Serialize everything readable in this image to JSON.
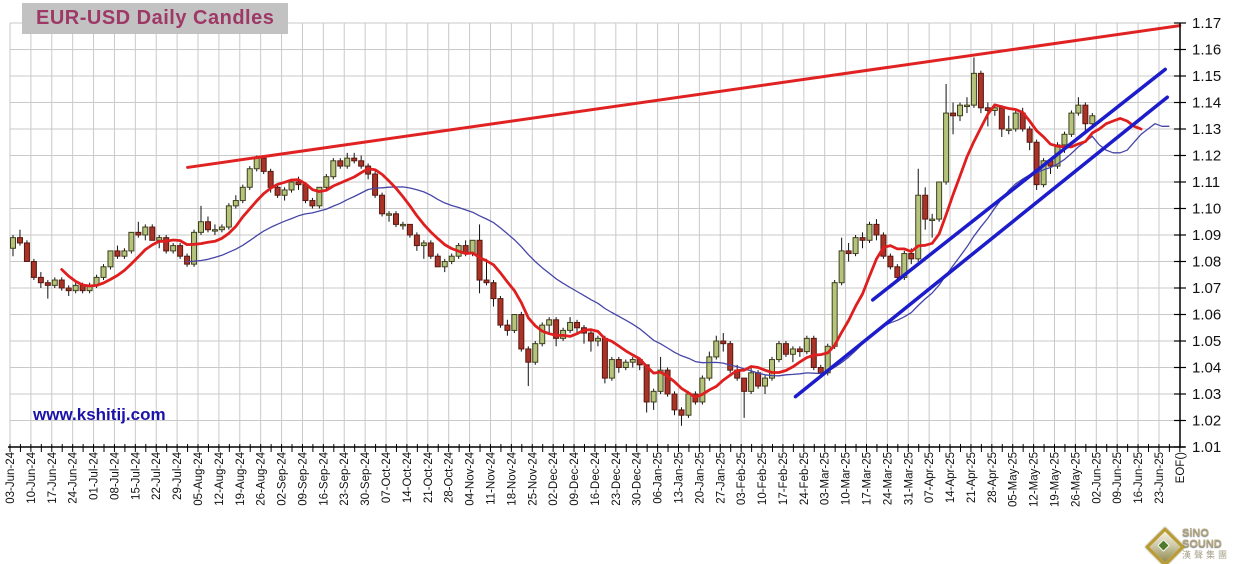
{
  "title": "EUR-USD Daily Candles",
  "watermark": "www.kshitij.com",
  "brand": {
    "name": "SiNO SOUND",
    "chinese": "漢聲集團"
  },
  "colors": {
    "grid": "#c9c9c9",
    "axis": "#000000",
    "label": "#111111",
    "bull_fill": "#b5c47c",
    "bull_stroke": "#3f3f1c",
    "bear_fill": "#a93327",
    "bear_stroke": "#571810",
    "wick": "#111111",
    "red_line": "#df1f1f",
    "red_trend": "#e02222",
    "blue_trend": "#1c1ccb",
    "blue_ma": "#4646a8",
    "title_color": "#9e3866",
    "title_bg": "#c2c2c2",
    "watermark_color": "#1b12aa"
  },
  "chart_data": {
    "type": "candlestick",
    "title": "EUR-USD Daily Candles",
    "ylabel": "",
    "ylim": [
      1.01,
      1.17
    ],
    "ytick_step": 0.01,
    "ytick_labels": [
      "1.17",
      "1.16",
      "1.15",
      "1.14",
      "1.13",
      "1.12",
      "1.11",
      "1.10",
      "1.09",
      "1.08",
      "1.07",
      "1.06",
      "1.05",
      "1.04",
      "1.03",
      "1.02",
      "1.01"
    ],
    "x_labels": [
      "03-Jun-24",
      "10-Jun-24",
      "17-Jun-24",
      "24-Jun-24",
      "01-Jul-24",
      "08-Jul-24",
      "15-Jul-24",
      "22-Jul-24",
      "29-Jul-24",
      "05-Aug-24",
      "12-Aug-24",
      "19-Aug-24",
      "26-Aug-24",
      "02-Sep-24",
      "09-Sep-24",
      "16-Sep-24",
      "23-Sep-24",
      "30-Sep-24",
      "07-Oct-24",
      "14-Oct-24",
      "21-Oct-24",
      "28-Oct-24",
      "04-Nov-24",
      "11-Nov-24",
      "18-Nov-24",
      "25-Nov-24",
      "02-Dec-24",
      "09-Dec-24",
      "16-Dec-24",
      "23-Dec-24",
      "30-Dec-24",
      "06-Jan-25",
      "13-Jan-25",
      "20-Jan-25",
      "27-Jan-25",
      "03-Feb-25",
      "10-Feb-25",
      "17-Feb-25",
      "24-Feb-25",
      "03-Mar-25",
      "10-Mar-25",
      "17-Mar-25",
      "24-Mar-25",
      "31-Mar-25",
      "07-Apr-25",
      "14-Apr-25",
      "21-Apr-25",
      "28-Apr-25",
      "05-May-25",
      "12-May-25",
      "19-May-25",
      "26-May-25",
      "02-Jun-25",
      "09-Jun-25",
      "16-Jun-25",
      "23-Jun-25"
    ],
    "x_end_label": "EOF()",
    "grid": true,
    "candles_note": "OHLC sampled 3 per week starting week of 03-Jun-24",
    "candles": [
      [
        1.085,
        1.09,
        1.082,
        1.089
      ],
      [
        1.089,
        1.092,
        1.086,
        1.087
      ],
      [
        1.087,
        1.088,
        1.08,
        1.08
      ],
      [
        1.08,
        1.081,
        1.073,
        1.074
      ],
      [
        1.074,
        1.076,
        1.07,
        1.072
      ],
      [
        1.072,
        1.073,
        1.066,
        1.071
      ],
      [
        1.071,
        1.074,
        1.07,
        1.073
      ],
      [
        1.073,
        1.074,
        1.069,
        1.07
      ],
      [
        1.07,
        1.071,
        1.067,
        1.069
      ],
      [
        1.069,
        1.072,
        1.068,
        1.071
      ],
      [
        1.071,
        1.072,
        1.068,
        1.069
      ],
      [
        1.069,
        1.072,
        1.068,
        1.071
      ],
      [
        1.071,
        1.075,
        1.07,
        1.074
      ],
      [
        1.074,
        1.079,
        1.073,
        1.078
      ],
      [
        1.078,
        1.084,
        1.077,
        1.084
      ],
      [
        1.084,
        1.086,
        1.081,
        1.082
      ],
      [
        1.082,
        1.085,
        1.081,
        1.084
      ],
      [
        1.084,
        1.091,
        1.083,
        1.091
      ],
      [
        1.091,
        1.095,
        1.089,
        1.09
      ],
      [
        1.09,
        1.094,
        1.088,
        1.093
      ],
      [
        1.093,
        1.094,
        1.088,
        1.088
      ],
      [
        1.088,
        1.09,
        1.085,
        1.089
      ],
      [
        1.089,
        1.09,
        1.083,
        1.084
      ],
      [
        1.084,
        1.087,
        1.083,
        1.086
      ],
      [
        1.086,
        1.087,
        1.081,
        1.082
      ],
      [
        1.082,
        1.083,
        1.078,
        1.079
      ],
      [
        1.079,
        1.092,
        1.078,
        1.091
      ],
      [
        1.091,
        1.101,
        1.09,
        1.095
      ],
      [
        1.095,
        1.097,
        1.091,
        1.092
      ],
      [
        1.092,
        1.094,
        1.09,
        1.092
      ],
      [
        1.092,
        1.094,
        1.091,
        1.093
      ],
      [
        1.093,
        1.102,
        1.092,
        1.101
      ],
      [
        1.101,
        1.105,
        1.1,
        1.103
      ],
      [
        1.103,
        1.109,
        1.102,
        1.108
      ],
      [
        1.108,
        1.116,
        1.107,
        1.115
      ],
      [
        1.115,
        1.12,
        1.114,
        1.119
      ],
      [
        1.119,
        1.12,
        1.113,
        1.114
      ],
      [
        1.114,
        1.115,
        1.106,
        1.108
      ],
      [
        1.108,
        1.109,
        1.104,
        1.105
      ],
      [
        1.105,
        1.108,
        1.103,
        1.107
      ],
      [
        1.107,
        1.111,
        1.106,
        1.11
      ],
      [
        1.11,
        1.112,
        1.107,
        1.109
      ],
      [
        1.109,
        1.11,
        1.102,
        1.103
      ],
      [
        1.103,
        1.104,
        1.1,
        1.101
      ],
      [
        1.101,
        1.108,
        1.1,
        1.108
      ],
      [
        1.108,
        1.113,
        1.107,
        1.112
      ],
      [
        1.112,
        1.119,
        1.111,
        1.118
      ],
      [
        1.118,
        1.119,
        1.115,
        1.116
      ],
      [
        1.116,
        1.121,
        1.115,
        1.119
      ],
      [
        1.119,
        1.121,
        1.117,
        1.118
      ],
      [
        1.118,
        1.12,
        1.115,
        1.116
      ],
      [
        1.116,
        1.117,
        1.111,
        1.113
      ],
      [
        1.113,
        1.114,
        1.104,
        1.105
      ],
      [
        1.105,
        1.106,
        1.097,
        1.098
      ],
      [
        1.098,
        1.099,
        1.095,
        1.098
      ],
      [
        1.098,
        1.099,
        1.093,
        1.094
      ],
      [
        1.094,
        1.095,
        1.092,
        1.094
      ],
      [
        1.094,
        1.094,
        1.089,
        1.09
      ],
      [
        1.09,
        1.091,
        1.084,
        1.086
      ],
      [
        1.086,
        1.088,
        1.081,
        1.087
      ],
      [
        1.087,
        1.088,
        1.081,
        1.082
      ],
      [
        1.082,
        1.083,
        1.078,
        1.078
      ],
      [
        1.078,
        1.081,
        1.076,
        1.08
      ],
      [
        1.08,
        1.083,
        1.079,
        1.082
      ],
      [
        1.082,
        1.087,
        1.081,
        1.086
      ],
      [
        1.086,
        1.088,
        1.082,
        1.083
      ],
      [
        1.083,
        1.088,
        1.082,
        1.088
      ],
      [
        1.088,
        1.094,
        1.068,
        1.073
      ],
      [
        1.073,
        1.081,
        1.071,
        1.072
      ],
      [
        1.072,
        1.073,
        1.063,
        1.066
      ],
      [
        1.066,
        1.067,
        1.055,
        1.056
      ],
      [
        1.056,
        1.058,
        1.052,
        1.054
      ],
      [
        1.054,
        1.06,
        1.053,
        1.06
      ],
      [
        1.06,
        1.061,
        1.046,
        1.047
      ],
      [
        1.047,
        1.048,
        1.033,
        1.042
      ],
      [
        1.042,
        1.05,
        1.041,
        1.049
      ],
      [
        1.049,
        1.057,
        1.048,
        1.056
      ],
      [
        1.056,
        1.059,
        1.053,
        1.058
      ],
      [
        1.058,
        1.059,
        1.048,
        1.051
      ],
      [
        1.051,
        1.055,
        1.05,
        1.054
      ],
      [
        1.054,
        1.059,
        1.053,
        1.057
      ],
      [
        1.057,
        1.058,
        1.053,
        1.055
      ],
      [
        1.055,
        1.056,
        1.049,
        1.053
      ],
      [
        1.053,
        1.054,
        1.046,
        1.05
      ],
      [
        1.05,
        1.052,
        1.048,
        1.051
      ],
      [
        1.051,
        1.052,
        1.034,
        1.036
      ],
      [
        1.036,
        1.044,
        1.035,
        1.043
      ],
      [
        1.043,
        1.044,
        1.038,
        1.04
      ],
      [
        1.04,
        1.043,
        1.039,
        1.042
      ],
      [
        1.042,
        1.044,
        1.04,
        1.043
      ],
      [
        1.043,
        1.043,
        1.039,
        1.041
      ],
      [
        1.041,
        1.041,
        1.023,
        1.027
      ],
      [
        1.027,
        1.032,
        1.024,
        1.031
      ],
      [
        1.031,
        1.044,
        1.03,
        1.039
      ],
      [
        1.039,
        1.04,
        1.029,
        1.03
      ],
      [
        1.03,
        1.031,
        1.022,
        1.024
      ],
      [
        1.024,
        1.025,
        1.018,
        1.022
      ],
      [
        1.022,
        1.031,
        1.021,
        1.03
      ],
      [
        1.03,
        1.031,
        1.026,
        1.027
      ],
      [
        1.027,
        1.037,
        1.026,
        1.036
      ],
      [
        1.036,
        1.046,
        1.035,
        1.044
      ],
      [
        1.044,
        1.052,
        1.043,
        1.05
      ],
      [
        1.05,
        1.053,
        1.046,
        1.049
      ],
      [
        1.049,
        1.05,
        1.038,
        1.039
      ],
      [
        1.039,
        1.041,
        1.035,
        1.036
      ],
      [
        1.036,
        1.036,
        1.021,
        1.031
      ],
      [
        1.031,
        1.04,
        1.03,
        1.038
      ],
      [
        1.038,
        1.039,
        1.032,
        1.033
      ],
      [
        1.033,
        1.037,
        1.03,
        1.036
      ],
      [
        1.036,
        1.044,
        1.035,
        1.043
      ],
      [
        1.043,
        1.05,
        1.042,
        1.049
      ],
      [
        1.049,
        1.05,
        1.044,
        1.045
      ],
      [
        1.045,
        1.048,
        1.042,
        1.047
      ],
      [
        1.047,
        1.048,
        1.044,
        1.046
      ],
      [
        1.046,
        1.052,
        1.045,
        1.051
      ],
      [
        1.051,
        1.052,
        1.039,
        1.04
      ],
      [
        1.04,
        1.041,
        1.036,
        1.038
      ],
      [
        1.038,
        1.049,
        1.037,
        1.048
      ],
      [
        1.048,
        1.073,
        1.047,
        1.072
      ],
      [
        1.072,
        1.089,
        1.071,
        1.084
      ],
      [
        1.084,
        1.087,
        1.08,
        1.083
      ],
      [
        1.083,
        1.09,
        1.082,
        1.089
      ],
      [
        1.089,
        1.091,
        1.085,
        1.088
      ],
      [
        1.088,
        1.095,
        1.087,
        1.094
      ],
      [
        1.094,
        1.096,
        1.088,
        1.09
      ],
      [
        1.09,
        1.091,
        1.081,
        1.082
      ],
      [
        1.082,
        1.083,
        1.077,
        1.078
      ],
      [
        1.078,
        1.079,
        1.073,
        1.074
      ],
      [
        1.074,
        1.084,
        1.073,
        1.083
      ],
      [
        1.083,
        1.085,
        1.079,
        1.081
      ],
      [
        1.081,
        1.115,
        1.08,
        1.105
      ],
      [
        1.105,
        1.108,
        1.092,
        1.096
      ],
      [
        1.096,
        1.098,
        1.089,
        1.096
      ],
      [
        1.096,
        1.11,
        1.095,
        1.11
      ],
      [
        1.11,
        1.147,
        1.109,
        1.136
      ],
      [
        1.136,
        1.14,
        1.128,
        1.135
      ],
      [
        1.135,
        1.14,
        1.133,
        1.139
      ],
      [
        1.139,
        1.142,
        1.136,
        1.139
      ],
      [
        1.139,
        1.157,
        1.138,
        1.151
      ],
      [
        1.151,
        1.152,
        1.136,
        1.138
      ],
      [
        1.138,
        1.14,
        1.131,
        1.137
      ],
      [
        1.137,
        1.139,
        1.135,
        1.138
      ],
      [
        1.138,
        1.139,
        1.127,
        1.13
      ],
      [
        1.13,
        1.135,
        1.128,
        1.13
      ],
      [
        1.13,
        1.137,
        1.129,
        1.136
      ],
      [
        1.136,
        1.138,
        1.129,
        1.13
      ],
      [
        1.13,
        1.131,
        1.122,
        1.125
      ],
      [
        1.125,
        1.126,
        1.107,
        1.109
      ],
      [
        1.109,
        1.119,
        1.108,
        1.118
      ],
      [
        1.118,
        1.119,
        1.113,
        1.116
      ],
      [
        1.116,
        1.125,
        1.115,
        1.124
      ],
      [
        1.124,
        1.129,
        1.121,
        1.128
      ],
      [
        1.128,
        1.137,
        1.127,
        1.136
      ],
      [
        1.136,
        1.142,
        1.135,
        1.139
      ],
      [
        1.139,
        1.14,
        1.129,
        1.132
      ],
      [
        1.132,
        1.136,
        1.131,
        1.135
      ]
    ],
    "moving_averages": {
      "red_ma": {
        "period_candles": 8,
        "extension": [
          1.13,
          1.132,
          1.133,
          1.134,
          1.133,
          1.131,
          1.13
        ]
      },
      "blue_ma": {
        "period_candles": 26,
        "extension": [
          1.124,
          1.122,
          1.121,
          1.121,
          1.122,
          1.125,
          1.128,
          1.13,
          1.132,
          1.131,
          1.131
        ]
      }
    },
    "trend_lines": [
      {
        "name": "red-resistance",
        "from": {
          "week": 8.5,
          "price": 1.1155
        },
        "to": {
          "week": 56.0,
          "price": 1.169
        },
        "color_key": "red_trend",
        "width": 3
      },
      {
        "name": "blue-support-lower",
        "from": {
          "week": 37.6,
          "price": 1.029
        },
        "to": {
          "week": 55.4,
          "price": 1.142
        },
        "color_key": "blue_trend",
        "width": 3.5
      },
      {
        "name": "blue-support-upper",
        "from": {
          "week": 41.3,
          "price": 1.0655
        },
        "to": {
          "week": 55.3,
          "price": 1.1525
        },
        "color_key": "blue_trend",
        "width": 3.5
      }
    ],
    "legend_position": "none"
  }
}
